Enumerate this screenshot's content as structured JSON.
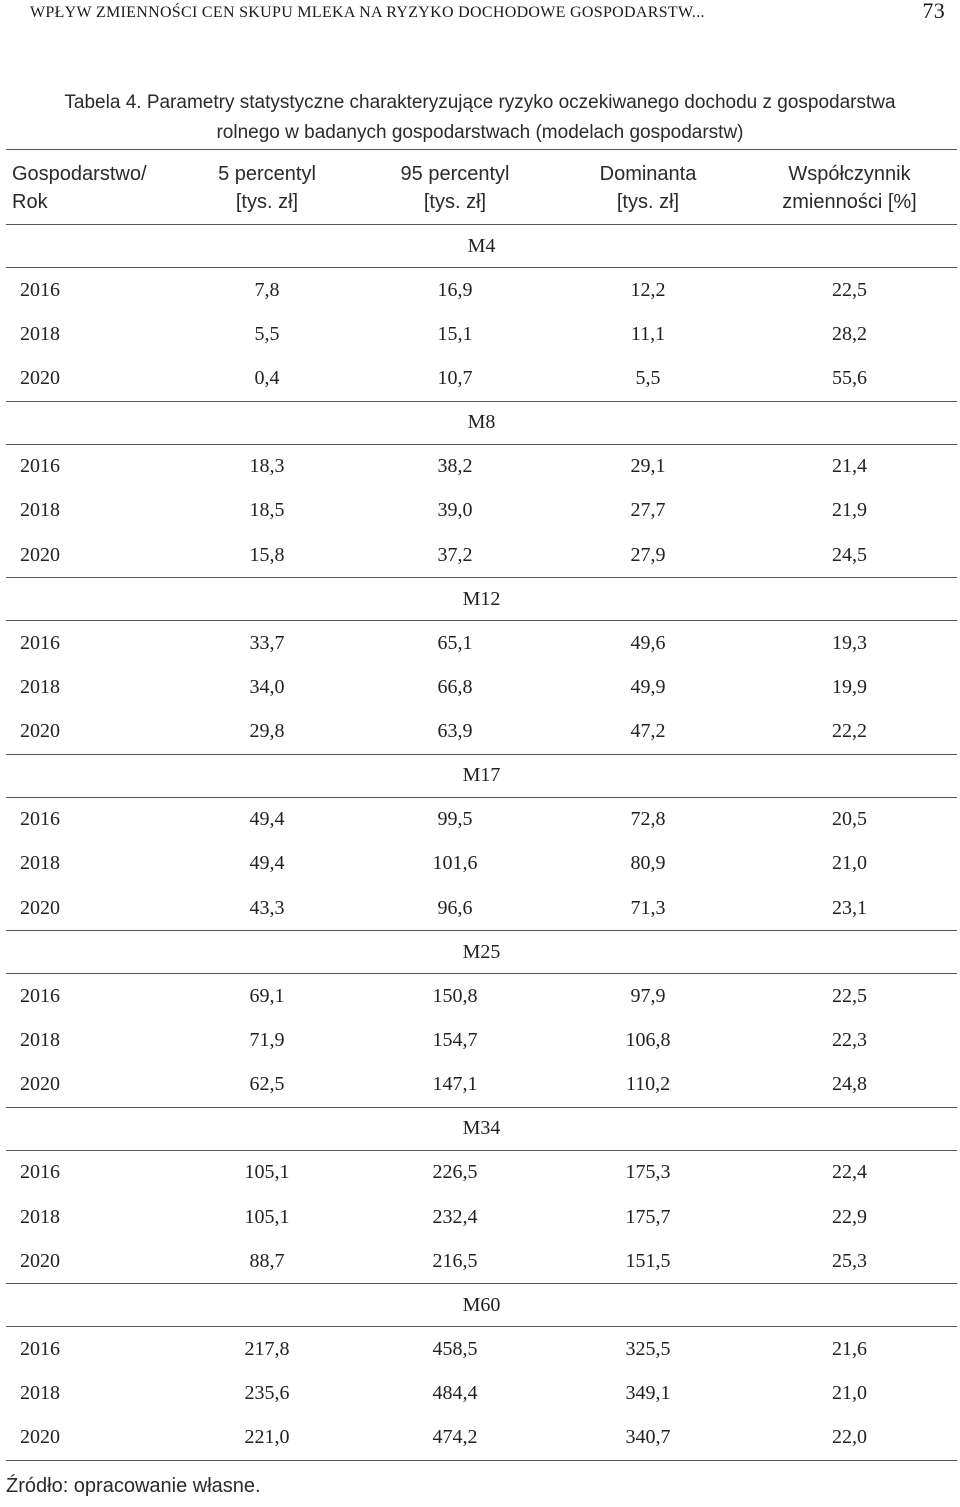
{
  "header": {
    "running_title": "WPŁYW ZMIENNOŚCI CEN SKUPU MLEKA NA RYZYKO DOCHODOWE GOSPODARSTW...",
    "page_number": "73"
  },
  "caption": {
    "line1": "Tabela 4. Parametry statystyczne charakteryzujące ryzyko oczekiwanego dochodu z gospodarstwa",
    "line2": "rolnego w badanych gospodarstwach (modelach gospodarstw)"
  },
  "table": {
    "columns": [
      {
        "line1": "Gospodarstwo/",
        "line2": "Rok"
      },
      {
        "line1": "5 percentyl",
        "line2": "[tys. zł]"
      },
      {
        "line1": "95 percentyl",
        "line2": "[tys. zł]"
      },
      {
        "line1": "Dominanta",
        "line2": "[tys. zł]"
      },
      {
        "line1": "Współczynnik",
        "line2": "zmienności [%]"
      }
    ],
    "groups": [
      {
        "name": "M4",
        "rows": [
          [
            "2016",
            "7,8",
            "16,9",
            "12,2",
            "22,5"
          ],
          [
            "2018",
            "5,5",
            "15,1",
            "11,1",
            "28,2"
          ],
          [
            "2020",
            "0,4",
            "10,7",
            "5,5",
            "55,6"
          ]
        ]
      },
      {
        "name": "M8",
        "rows": [
          [
            "2016",
            "18,3",
            "38,2",
            "29,1",
            "21,4"
          ],
          [
            "2018",
            "18,5",
            "39,0",
            "27,7",
            "21,9"
          ],
          [
            "2020",
            "15,8",
            "37,2",
            "27,9",
            "24,5"
          ]
        ]
      },
      {
        "name": "M12",
        "rows": [
          [
            "2016",
            "33,7",
            "65,1",
            "49,6",
            "19,3"
          ],
          [
            "2018",
            "34,0",
            "66,8",
            "49,9",
            "19,9"
          ],
          [
            "2020",
            "29,8",
            "63,9",
            "47,2",
            "22,2"
          ]
        ]
      },
      {
        "name": "M17",
        "rows": [
          [
            "2016",
            "49,4",
            "99,5",
            "72,8",
            "20,5"
          ],
          [
            "2018",
            "49,4",
            "101,6",
            "80,9",
            "21,0"
          ],
          [
            "2020",
            "43,3",
            "96,6",
            "71,3",
            "23,1"
          ]
        ]
      },
      {
        "name": "M25",
        "rows": [
          [
            "2016",
            "69,1",
            "150,8",
            "97,9",
            "22,5"
          ],
          [
            "2018",
            "71,9",
            "154,7",
            "106,8",
            "22,3"
          ],
          [
            "2020",
            "62,5",
            "147,1",
            "110,2",
            "24,8"
          ]
        ]
      },
      {
        "name": "M34",
        "rows": [
          [
            "2016",
            "105,1",
            "226,5",
            "175,3",
            "22,4"
          ],
          [
            "2018",
            "105,1",
            "232,4",
            "175,7",
            "22,9"
          ],
          [
            "2020",
            "88,7",
            "216,5",
            "151,5",
            "25,3"
          ]
        ]
      },
      {
        "name": "M60",
        "rows": [
          [
            "2016",
            "217,8",
            "458,5",
            "325,5",
            "21,6"
          ],
          [
            "2018",
            "235,6",
            "484,4",
            "349,1",
            "21,0"
          ],
          [
            "2020",
            "221,0",
            "474,2",
            "340,7",
            "22,0"
          ]
        ]
      }
    ]
  },
  "source": "Źródło: opracowanie własne."
}
